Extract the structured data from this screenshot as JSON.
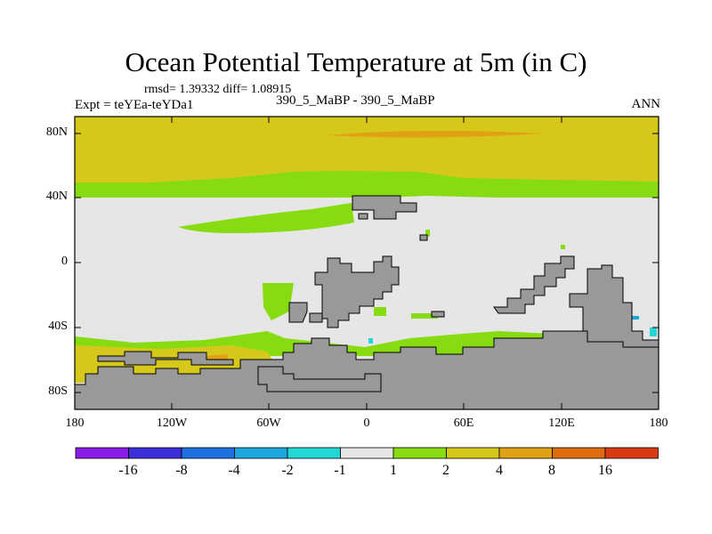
{
  "plot": {
    "title": "Ocean Potential Temperature at 5m (in C)",
    "stats": "rmsd= 1.39332  diff= 1.08915",
    "experiment": "Expt = teYEa-teYDa1",
    "case_label": "390_5_MaBP - 390_5_MaBP",
    "season": "ANN"
  },
  "axes": {
    "x_ticks": [
      "180",
      "120W",
      "60W",
      "0",
      "60E",
      "120E",
      "180"
    ],
    "y_ticks": [
      "80N",
      "40N",
      "0",
      "40S",
      "80S"
    ]
  },
  "colorbar": {
    "labels": [
      "-16",
      "-8",
      "-4",
      "-2",
      "-1",
      "1",
      "2",
      "4",
      "8",
      "16"
    ],
    "colors": [
      "#8a1ce6",
      "#3a2fd9",
      "#1e6fe0",
      "#1aa7e0",
      "#22d8d6",
      "#e6e6e6",
      "#86dc10",
      "#d6c81a",
      "#e0a214",
      "#e06a10",
      "#d83a14"
    ]
  },
  "colors": {
    "land": "#999999",
    "near_zero": "#e6e6e6",
    "warm_1_2": "#86dc10",
    "warm_2_4": "#d6c81a",
    "warm_4_8": "#e0a214",
    "warm_8_16": "#e06a10",
    "cool_m2_m1": "#22d8d6",
    "cool_m4_m2": "#1aa7e0"
  }
}
